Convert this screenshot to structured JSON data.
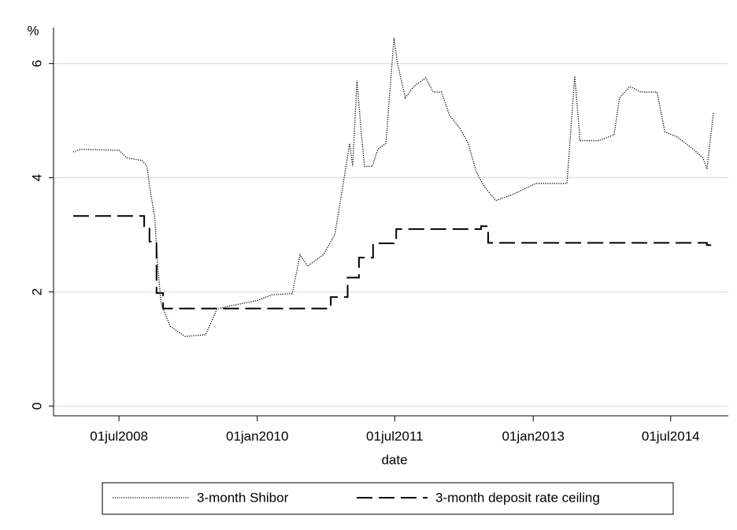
{
  "chart_data": {
    "type": "line",
    "y_label": "%",
    "x_label": "date",
    "xlim": [
      "2007-10-15",
      "2015-02-15"
    ],
    "xticks": [
      {
        "value": "2008-07-01",
        "label": "01jul2008"
      },
      {
        "value": "2010-01-01",
        "label": "01jan2010"
      },
      {
        "value": "2011-07-01",
        "label": "01jul2011"
      },
      {
        "value": "2013-01-01",
        "label": "01jan2013"
      },
      {
        "value": "2014-07-01",
        "label": "01jul2014"
      }
    ],
    "ylim": [
      -0.17,
      6.63
    ],
    "yticks": [
      0,
      2,
      4,
      6
    ],
    "grid": true,
    "legend": "bottom",
    "series": [
      {
        "name": "3-month Shibor",
        "color": "#000000",
        "style": "dotted",
        "drawstyle": "linear",
        "x": [
          "2008-01-01",
          "2008-02-01",
          "2008-07-01",
          "2008-08-01",
          "2008-10-01",
          "2008-10-20",
          "2008-11-01",
          "2008-11-20",
          "2008-12-01",
          "2008-12-15",
          "2009-01-20",
          "2009-03-20",
          "2009-06-10",
          "2009-07-25",
          "2009-09-10",
          "2010-01-01",
          "2010-03-01",
          "2010-05-20",
          "2010-06-20",
          "2010-07-20",
          "2010-09-20",
          "2010-11-05",
          "2010-12-05",
          "2011-01-03",
          "2011-01-15",
          "2011-02-01",
          "2011-02-18",
          "2011-03-03",
          "2011-04-03",
          "2011-04-25",
          "2011-05-27",
          "2011-06-28",
          "2011-07-12",
          "2011-08-12",
          "2011-09-15",
          "2011-11-01",
          "2011-12-01",
          "2012-01-03",
          "2012-02-03",
          "2012-03-18",
          "2012-04-18",
          "2012-05-20",
          "2012-06-20",
          "2012-08-05",
          "2012-10-08",
          "2013-01-12",
          "2013-05-15",
          "2013-06-15",
          "2013-07-06",
          "2013-09-18",
          "2013-11-18",
          "2013-12-10",
          "2014-01-20",
          "2014-03-05",
          "2014-05-08",
          "2014-06-08",
          "2014-07-25",
          "2014-09-28",
          "2014-11-06",
          "2014-11-22",
          "2014-12-18"
        ],
        "values": [
          4.45,
          4.5,
          4.48,
          4.35,
          4.3,
          4.2,
          3.8,
          3.3,
          2.5,
          1.8,
          1.4,
          1.22,
          1.25,
          1.7,
          1.75,
          1.85,
          1.95,
          1.97,
          2.65,
          2.45,
          2.65,
          3.0,
          3.8,
          4.6,
          4.2,
          5.7,
          4.8,
          4.2,
          4.2,
          4.5,
          4.6,
          6.45,
          6.0,
          5.4,
          5.6,
          5.75,
          5.5,
          5.5,
          5.1,
          4.85,
          4.6,
          4.1,
          3.85,
          3.6,
          3.7,
          3.9,
          3.9,
          5.78,
          4.65,
          4.65,
          4.75,
          5.4,
          5.6,
          5.5,
          5.5,
          4.8,
          4.72,
          4.5,
          4.35,
          4.15,
          5.15
        ]
      },
      {
        "name": "3-month deposit rate ceiling",
        "color": "#000000",
        "style": "dashed",
        "drawstyle": "steps-post",
        "x": [
          "2008-01-01",
          "2008-10-09",
          "2008-10-30",
          "2008-11-27",
          "2008-12-23",
          "2010-10-20",
          "2010-12-26",
          "2011-02-09",
          "2011-04-06",
          "2011-07-07",
          "2012-06-08",
          "2012-07-06",
          "2014-11-22",
          "2014-12-18"
        ],
        "values": [
          3.33,
          3.15,
          2.88,
          1.98,
          1.71,
          1.91,
          2.25,
          2.6,
          2.85,
          3.1,
          3.15,
          2.86,
          2.82,
          2.82
        ]
      }
    ]
  }
}
